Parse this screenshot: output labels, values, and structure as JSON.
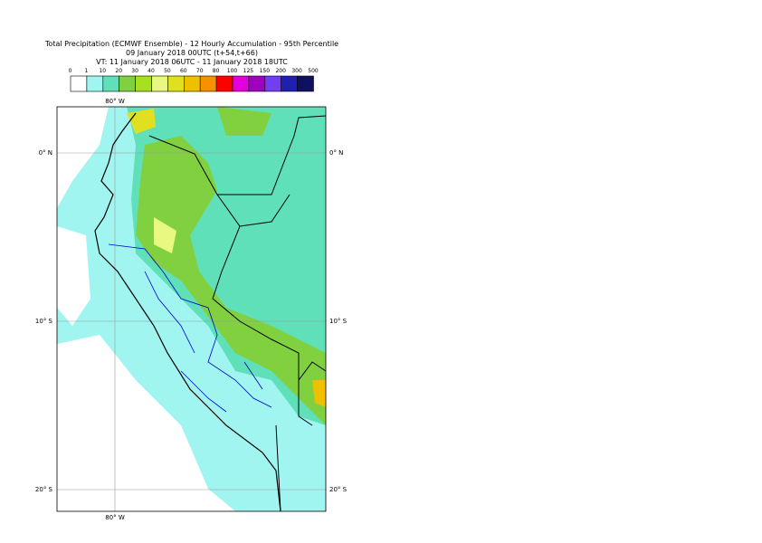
{
  "header": {
    "title_lines": [
      "Total Precipitation (ECMWF Ensemble) - 12 Hourly Accumulation - 95th Percentile",
      "09 January 2018 00UTC (t+54,t+66)",
      "VT: 11 January 2018 06UTC - 11 January 2018 18UTC"
    ]
  },
  "legend": {
    "thresholds": [
      0,
      1,
      10,
      20,
      30,
      40,
      50,
      60,
      70,
      80,
      100,
      125,
      150,
      200,
      300,
      500
    ],
    "colors": [
      "#ffffff",
      "#a0f5f0",
      "#60e0b8",
      "#80d040",
      "#a8e020",
      "#e8f880",
      "#e0e020",
      "#f0c000",
      "#f89000",
      "#ff0000",
      "#e000e0",
      "#a000c0",
      "#7040f0",
      "#2020b0",
      "#101060"
    ]
  },
  "map": {
    "lon_labels": [
      "80° W"
    ],
    "lat_labels": [
      "0° N",
      "10° S",
      "20° S"
    ]
  }
}
